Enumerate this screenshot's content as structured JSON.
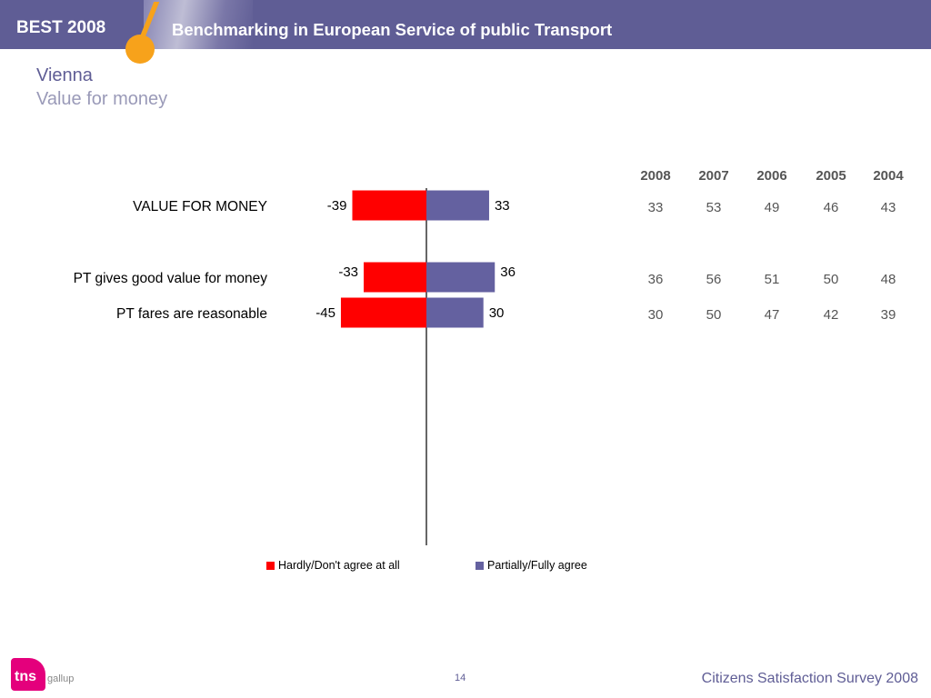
{
  "header": {
    "brand": "BEST 2008",
    "subtitle": "Benchmarking in European Service of public Transport"
  },
  "title": "Vienna",
  "subtitle": "Value for money",
  "colors": {
    "negative": "#ff0000",
    "positive": "#6461a0",
    "header": "#5f5d95",
    "accent": "#f7a21b"
  },
  "chart_data": {
    "type": "bar",
    "orientation": "horizontal-diverging",
    "categories": [
      "VALUE FOR MONEY",
      "PT gives good value for money",
      "PT fares are reasonable"
    ],
    "series": [
      {
        "name": "Hardly/Don't agree at all",
        "values": [
          -39,
          -33,
          -45
        ]
      },
      {
        "name": "Partially/Fully agree",
        "values": [
          33,
          36,
          30
        ]
      }
    ],
    "legend": "bottom"
  },
  "years_table": {
    "headers": [
      "2008",
      "2007",
      "2006",
      "2005",
      "2004"
    ],
    "rows": [
      [
        "33",
        "53",
        "49",
        "46",
        "43"
      ],
      [
        "36",
        "56",
        "51",
        "50",
        "48"
      ],
      [
        "30",
        "50",
        "47",
        "42",
        "39"
      ]
    ]
  },
  "footer": {
    "logo": "tns",
    "logo_sub": "gallup",
    "page_number": "14",
    "survey": "Citizens Satisfaction Survey 2008"
  }
}
